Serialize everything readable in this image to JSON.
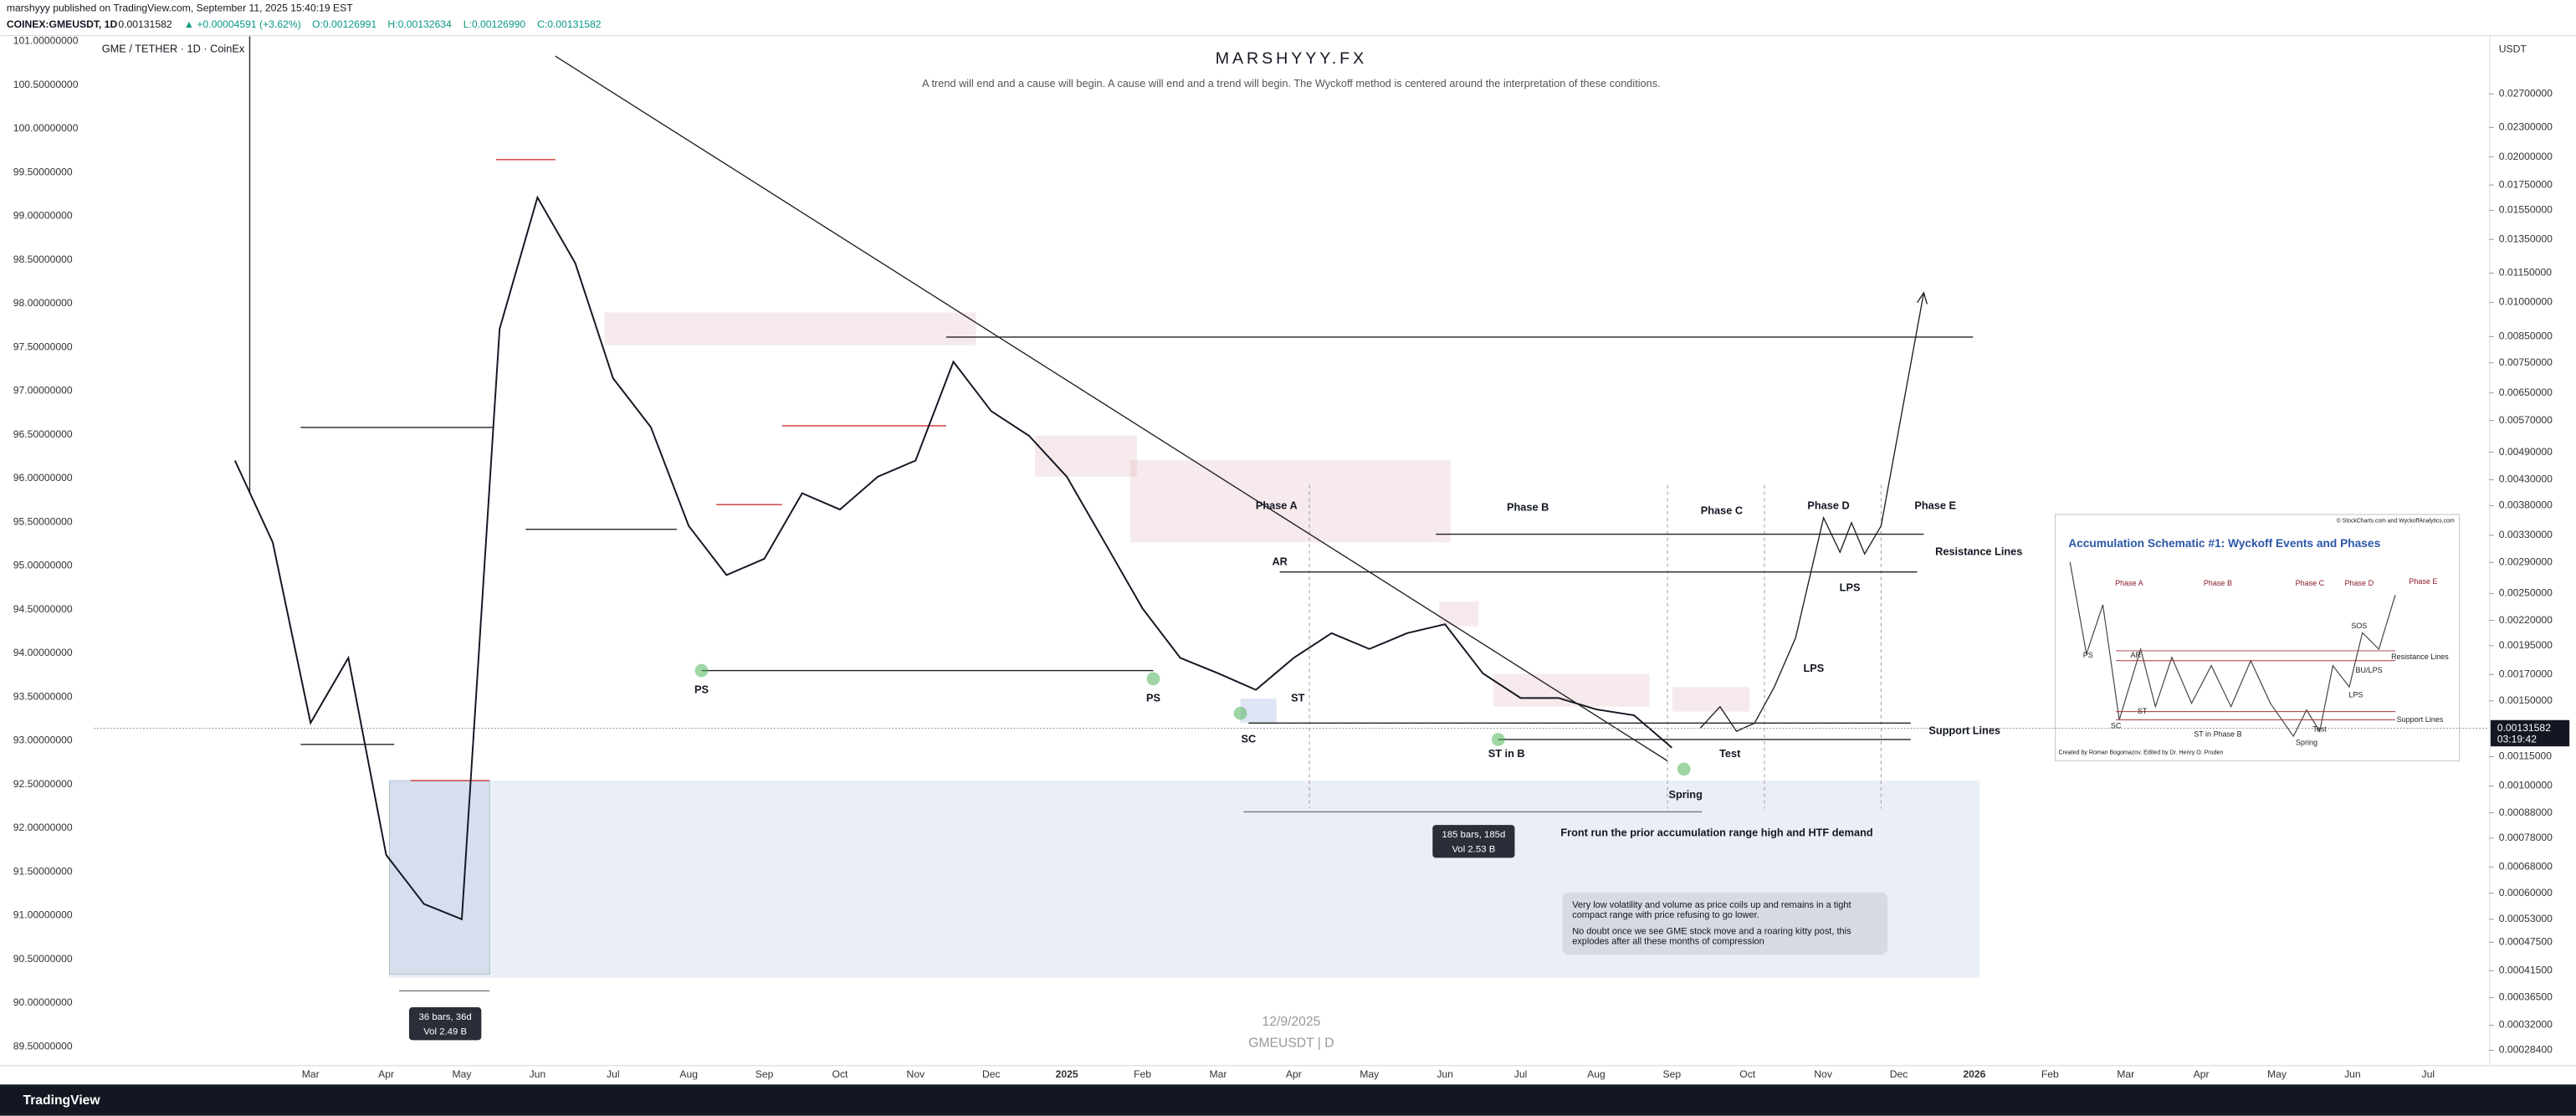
{
  "header": {
    "published": "marshyyy published on TradingView.com, September 11, 2025 15:40:19 EST",
    "symbol": "COINEX:GMEUSDT, 1D",
    "last": "0.00131582",
    "change": "▲ +0.00004591 (+3.62%)",
    "open": "O:0.00126991",
    "high": "H:0.00132634",
    "low": "L:0.00126990",
    "close": "C:0.00131582"
  },
  "chart_data": {
    "type": "line",
    "title": "MARSHYYY.FX",
    "subtitle": "A trend will end and a cause will begin. A cause will end and a trend will begin.   The Wyckoff method is centered around the interpretation of these conditions.",
    "pane_label": "GME / TETHER · 1D · CoinEx",
    "currency": "USDT",
    "watermark_date": "12/9/2025",
    "watermark_symbol": "GMEUSDT | D",
    "categories": [
      null,
      null,
      "Mar",
      null,
      "Apr",
      null,
      "May",
      null,
      "Jun",
      null,
      "Jul",
      null,
      "Aug",
      null,
      "Sep",
      null,
      "Oct",
      null,
      "Nov",
      null,
      "Dec",
      null,
      "2025",
      null,
      "Feb",
      null,
      "Mar",
      null,
      "Apr",
      null,
      "May",
      null,
      "Jun",
      null,
      "Jul",
      null,
      "Aug",
      null,
      "Sep",
      null,
      "Oct",
      null,
      "Nov",
      null,
      "Dec",
      null,
      "2026",
      null,
      "Feb",
      null,
      "Mar",
      null,
      "Apr",
      null,
      "May",
      null,
      "Jun",
      null,
      "Jul",
      null
    ],
    "values": [
      0.00471,
      0.00319,
      0.00135,
      0.00184,
      0.00072,
      0.00057,
      0.00053,
      0.00882,
      0.01649,
      0.01206,
      0.00697,
      0.00552,
      0.00345,
      0.00273,
      0.00295,
      0.00403,
      0.00373,
      0.00436,
      0.00471,
      0.00754,
      0.00596,
      0.0053,
      0.00436,
      0.00319,
      0.00233,
      0.00184,
      0.00171,
      0.00158,
      0.00184,
      0.00207,
      0.00192,
      0.00207,
      0.00216,
      0.00171,
      0.00152,
      0.00152,
      0.00144,
      0.0014,
      0.0012,
      null,
      null,
      null,
      null,
      null,
      null,
      null,
      null,
      null,
      null,
      null,
      null,
      null,
      null,
      null,
      null,
      null,
      null,
      null,
      null,
      null
    ],
    "color": "#131722",
    "yscale": "log",
    "ylim": [
      0.000265,
      0.0355
    ],
    "yticks": [
      {
        "value": 0.027,
        "label": "0.02700000"
      },
      {
        "value": 0.023,
        "label": "0.02300000"
      },
      {
        "value": 0.02,
        "label": "0.02000000"
      },
      {
        "value": 0.0175,
        "label": "0.01750000"
      },
      {
        "value": 0.0155,
        "label": "0.01550000"
      },
      {
        "value": 0.0135,
        "label": "0.01350000"
      },
      {
        "value": 0.0115,
        "label": "0.01150000"
      },
      {
        "value": 0.01,
        "label": "0.01000000"
      },
      {
        "value": 0.0085,
        "label": "0.00850000"
      },
      {
        "value": 0.0075,
        "label": "0.00750000"
      },
      {
        "value": 0.0065,
        "label": "0.00650000"
      },
      {
        "value": 0.0057,
        "label": "0.00570000"
      },
      {
        "value": 0.0049,
        "label": "0.00490000"
      },
      {
        "value": 0.0043,
        "label": "0.00430000"
      },
      {
        "value": 0.0038,
        "label": "0.00380000"
      },
      {
        "value": 0.0033,
        "label": "0.00330000"
      },
      {
        "value": 0.0029,
        "label": "0.00290000"
      },
      {
        "value": 0.0025,
        "label": "0.00250000"
      },
      {
        "value": 0.0022,
        "label": "0.00220000"
      },
      {
        "value": 0.00195,
        "label": "0.00195000"
      },
      {
        "value": 0.0017,
        "label": "0.00170000"
      },
      {
        "value": 0.0015,
        "label": "0.00150000"
      },
      {
        "value": 0.00115,
        "label": "0.00115000"
      },
      {
        "value": 0.001,
        "label": "0.00100000"
      },
      {
        "value": 0.00088,
        "label": "0.00088000"
      },
      {
        "value": 0.00078,
        "label": "0.00078000"
      },
      {
        "value": 0.00068,
        "label": "0.00068000"
      },
      {
        "value": 0.0006,
        "label": "0.00060000"
      },
      {
        "value": 0.00053,
        "label": "0.00053000"
      },
      {
        "value": 0.000475,
        "label": "0.00047500"
      },
      {
        "value": 0.000415,
        "label": "0.00041500"
      },
      {
        "value": 0.000365,
        "label": "0.00036500"
      },
      {
        "value": 0.00032,
        "label": "0.00032000"
      },
      {
        "value": 0.000284,
        "label": "0.00028400"
      }
    ],
    "y2lim": [
      89.293,
      101.056
    ],
    "y2ticks": [
      {
        "value": 101,
        "label": "101.00000000"
      },
      {
        "value": 100.5,
        "label": "100.50000000"
      },
      {
        "value": 100,
        "label": "100.00000000"
      },
      {
        "value": 99.5,
        "label": "99.50000000"
      },
      {
        "value": 99,
        "label": "99.00000000"
      },
      {
        "value": 98.5,
        "label": "98.50000000"
      },
      {
        "value": 98,
        "label": "98.00000000"
      },
      {
        "value": 97.5,
        "label": "97.50000000"
      },
      {
        "value": 97,
        "label": "97.00000000"
      },
      {
        "value": 96.5,
        "label": "96.50000000"
      },
      {
        "value": 96,
        "label": "96.00000000"
      },
      {
        "value": 95.5,
        "label": "95.50000000"
      },
      {
        "value": 95,
        "label": "95.00000000"
      },
      {
        "value": 94.5,
        "label": "94.50000000"
      },
      {
        "value": 94,
        "label": "94.00000000"
      },
      {
        "value": 93.5,
        "label": "93.50000000"
      },
      {
        "value": 93,
        "label": "93.00000000"
      },
      {
        "value": 92.5,
        "label": "92.50000000"
      },
      {
        "value": 92,
        "label": "92.00000000"
      },
      {
        "value": 91.5,
        "label": "91.50000000"
      },
      {
        "value": 91,
        "label": "91.00000000"
      },
      {
        "value": 90.5,
        "label": "90.50000000"
      },
      {
        "value": 90,
        "label": "90.00000000"
      },
      {
        "value": 89.5,
        "label": "89.50000000"
      }
    ],
    "last_price": 0.00131582,
    "countdown": "03:19:42",
    "annotations": [
      "PS",
      "PS",
      "SC",
      "ST",
      "AR",
      "ST in B",
      "Spring",
      "Test",
      "LPS",
      "LPS",
      "Phase A",
      "Phase B",
      "Phase C",
      "Phase D",
      "Phase E",
      "Resistance Lines",
      "Support Lines",
      "Front run the prior accumulation range high and HTF demand"
    ],
    "measures": [
      {
        "bars": "185 bars, 185d",
        "volume": "Vol 2.53 B"
      },
      {
        "bars": "36 bars, 36d",
        "volume": "Vol 2.49 B"
      }
    ],
    "note_lines": [
      "Very low volatility and volume as price coils up and remains in a tight",
      "compact range with price refusing to go lower.",
      "No doubt once we see GME stock move and a roaring kitty post, this",
      "explodes after all these months of compression"
    ]
  },
  "inset": {
    "copyright": "© StockCharts.com and WyckoffAnalytics.com",
    "title": "Accumulation Schematic #1: Wyckoff Events and Phases",
    "labels": [
      "Phase A",
      "Phase B",
      "Phase C",
      "Phase D",
      "Phase E",
      "PS",
      "SC",
      "AR",
      "ST",
      "ST in Phase B",
      "Spring",
      "Test",
      "LPS",
      "SOS",
      "BU/LPS",
      "Resistance Lines",
      "Support Lines"
    ],
    "credit": "Created by Roman Bogomazov. Edited by Dr. Henry O. Pruden"
  },
  "footer": {
    "brand": "TradingView"
  }
}
